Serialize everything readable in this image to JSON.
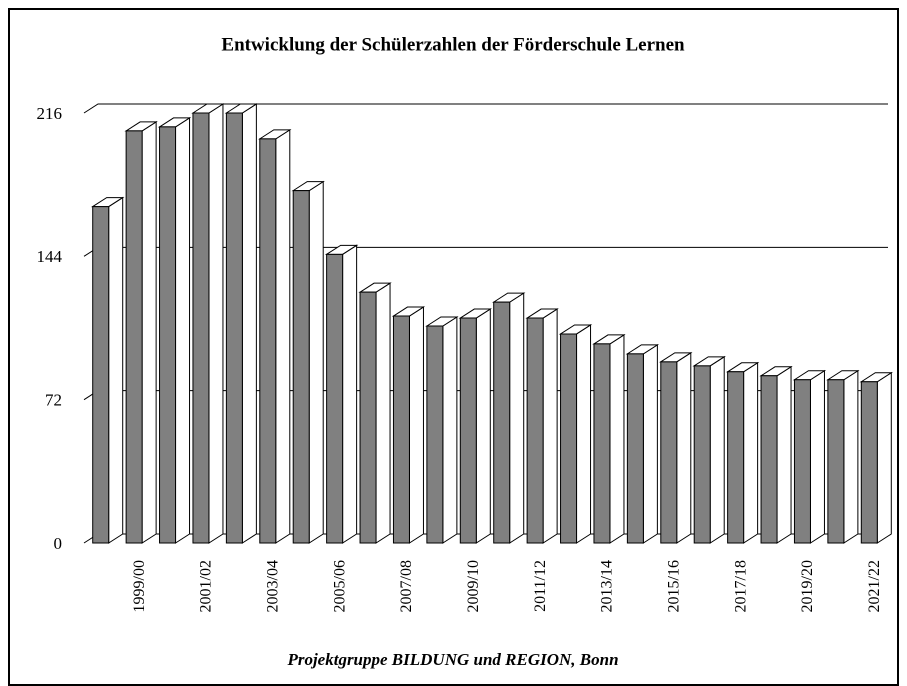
{
  "chart_data": {
    "type": "bar3d",
    "title": "Entwicklung der Schülerzahlen der Förderschule Lernen",
    "footer": "Projektgruppe BILDUNG und REGION, Bonn",
    "categories": [
      null,
      "1999/00",
      null,
      "2001/02",
      null,
      "2003/04",
      null,
      "2005/06",
      null,
      "2007/08",
      null,
      "2009/10",
      null,
      "2011/12",
      null,
      "2013/14",
      null,
      "2015/16",
      null,
      "2017/18",
      null,
      "2019/20",
      null,
      "2021/22"
    ],
    "values": [
      169,
      207,
      209,
      216,
      216,
      203,
      177,
      145,
      126,
      114,
      109,
      113,
      121,
      113,
      105,
      100,
      95,
      91,
      89,
      86,
      84,
      82,
      82,
      81
    ],
    "color": "#808080",
    "ylim": [
      0,
      216
    ],
    "yticks": [
      0,
      72,
      144,
      216
    ],
    "grid": true
  }
}
